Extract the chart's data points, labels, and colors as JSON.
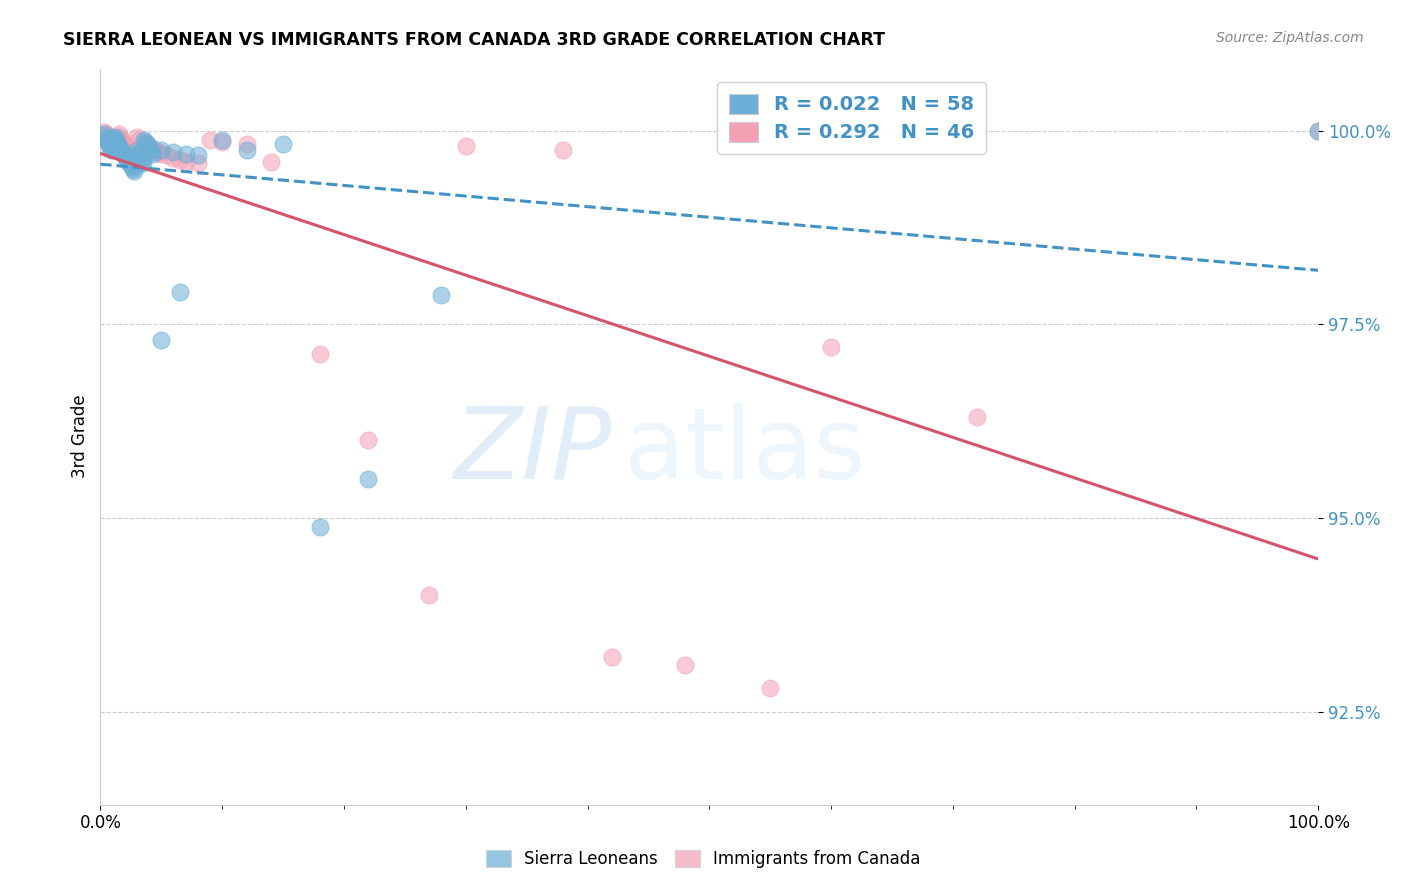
{
  "title": "SIERRA LEONEAN VS IMMIGRANTS FROM CANADA 3RD GRADE CORRELATION CHART",
  "source": "Source: ZipAtlas.com",
  "ylabel": "3rd Grade",
  "xlim": [
    0.0,
    1.0
  ],
  "ylim": [
    0.913,
    1.008
  ],
  "yticks": [
    0.925,
    0.95,
    0.975,
    1.0
  ],
  "ytick_labels": [
    "92.5%",
    "95.0%",
    "97.5%",
    "100.0%"
  ],
  "xticks": [
    0.0,
    1.0
  ],
  "xtick_labels": [
    "0.0%",
    "100.0%"
  ],
  "legend_r_blue": "R = 0.022",
  "legend_n_blue": "N = 58",
  "legend_r_pink": "R = 0.292",
  "legend_n_pink": "N = 46",
  "blue_color": "#6baed6",
  "pink_color": "#f4a0b5",
  "blue_line_color": "#4292c6",
  "pink_line_color": "#d4546e",
  "blue_scatter_x": [
    0.003,
    0.004,
    0.005,
    0.006,
    0.007,
    0.008,
    0.008,
    0.009,
    0.01,
    0.01,
    0.01,
    0.01,
    0.01,
    0.012,
    0.013,
    0.014,
    0.015,
    0.016,
    0.017,
    0.018,
    0.019,
    0.02,
    0.021,
    0.022,
    0.023,
    0.024,
    0.025,
    0.026,
    0.027,
    0.028,
    0.029,
    0.03,
    0.031,
    0.032,
    0.033,
    0.034,
    0.035,
    0.036,
    0.037,
    0.038,
    0.039,
    0.04,
    0.041,
    0.042,
    0.043,
    0.05,
    0.06,
    0.07,
    0.08,
    0.1,
    0.12,
    0.15,
    0.18,
    0.22,
    0.28,
    0.05,
    0.065,
    1.0
  ],
  "blue_scatter_y": [
    0.9995,
    0.9992,
    0.9988,
    0.9985,
    0.9983,
    0.998,
    0.9978,
    0.9975,
    0.999,
    0.9985,
    0.9982,
    0.9978,
    0.9975,
    0.9992,
    0.9988,
    0.9985,
    0.998,
    0.9978,
    0.9975,
    0.9972,
    0.997,
    0.9968,
    0.9965,
    0.9963,
    0.996,
    0.9958,
    0.9955,
    0.9953,
    0.995,
    0.9948,
    0.9973,
    0.997,
    0.9968,
    0.9965,
    0.9962,
    0.996,
    0.9958,
    0.9988,
    0.9985,
    0.9983,
    0.998,
    0.9978,
    0.9975,
    0.9972,
    0.997,
    0.9975,
    0.9972,
    0.997,
    0.9968,
    0.9988,
    0.9975,
    0.9982,
    0.9488,
    0.955,
    0.9788,
    0.973,
    0.9792,
    1.0
  ],
  "pink_scatter_x": [
    0.003,
    0.005,
    0.007,
    0.008,
    0.01,
    0.01,
    0.012,
    0.013,
    0.015,
    0.016,
    0.017,
    0.018,
    0.02,
    0.022,
    0.024,
    0.026,
    0.028,
    0.03,
    0.032,
    0.035,
    0.038,
    0.04,
    0.042,
    0.045,
    0.048,
    0.05,
    0.055,
    0.06,
    0.065,
    0.07,
    0.08,
    0.09,
    0.1,
    0.12,
    0.14,
    0.18,
    0.22,
    0.27,
    0.3,
    0.38,
    0.42,
    0.48,
    0.55,
    0.6,
    0.72,
    1.0
  ],
  "pink_scatter_y": [
    0.9998,
    0.9995,
    0.9993,
    0.999,
    0.9988,
    0.9985,
    0.9983,
    0.998,
    0.9995,
    0.9992,
    0.9988,
    0.9985,
    0.9982,
    0.998,
    0.9975,
    0.9972,
    0.997,
    0.9992,
    0.9988,
    0.9985,
    0.9983,
    0.998,
    0.9978,
    0.9975,
    0.9972,
    0.997,
    0.9968,
    0.9965,
    0.9962,
    0.996,
    0.9958,
    0.9988,
    0.9985,
    0.9982,
    0.996,
    0.9712,
    0.96,
    0.94,
    0.998,
    0.9975,
    0.932,
    0.931,
    0.928,
    0.972,
    0.963,
    1.0
  ]
}
